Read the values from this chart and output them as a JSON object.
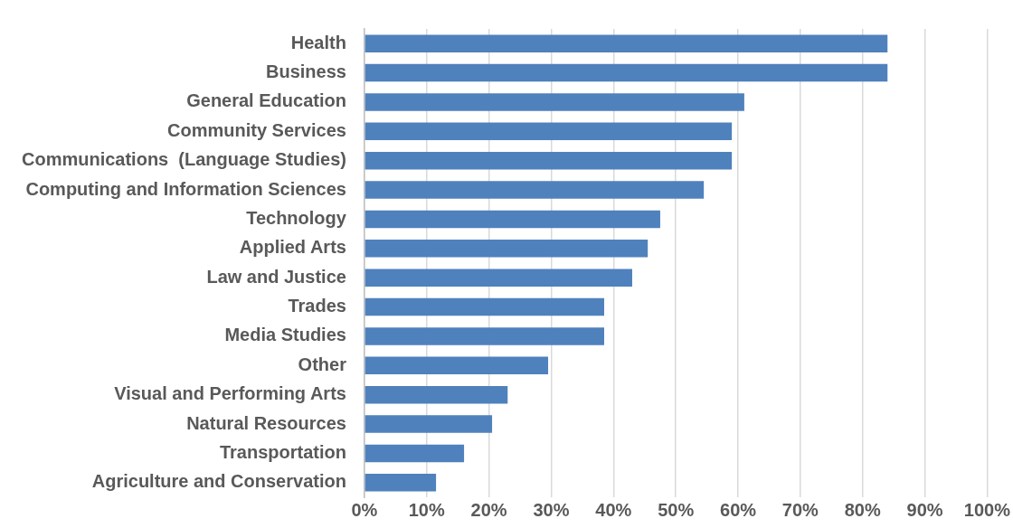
{
  "chart_data": {
    "type": "bar",
    "orientation": "horizontal",
    "categories": [
      "Health",
      "Business",
      "General Education",
      "Community Services",
      "Communications  (Language Studies)",
      "Computing and Information Sciences",
      "Technology",
      "Applied Arts",
      "Law and Justice",
      "Trades",
      "Media Studies",
      "Other",
      "Visual and Performing Arts",
      "Natural Resources",
      "Transportation",
      "Agriculture and Conservation"
    ],
    "values": [
      84,
      84,
      61,
      59,
      59,
      54.5,
      47.5,
      45.5,
      43,
      38.5,
      38.5,
      29.5,
      23,
      20.5,
      16,
      11.5
    ],
    "color": "#4f81bd",
    "xlim": [
      0,
      100
    ],
    "xticks": [
      {
        "value": 0,
        "label": "0%"
      },
      {
        "value": 10,
        "label": "10%"
      },
      {
        "value": 20,
        "label": "20%"
      },
      {
        "value": 30,
        "label": "30%"
      },
      {
        "value": 40,
        "label": "40%"
      },
      {
        "value": 50,
        "label": "50%"
      },
      {
        "value": 60,
        "label": "60%"
      },
      {
        "value": 70,
        "label": "70%"
      },
      {
        "value": 80,
        "label": "80%"
      },
      {
        "value": 90,
        "label": "90%"
      },
      {
        "value": 100,
        "label": "100%"
      }
    ],
    "grid": "x",
    "legend": false
  }
}
